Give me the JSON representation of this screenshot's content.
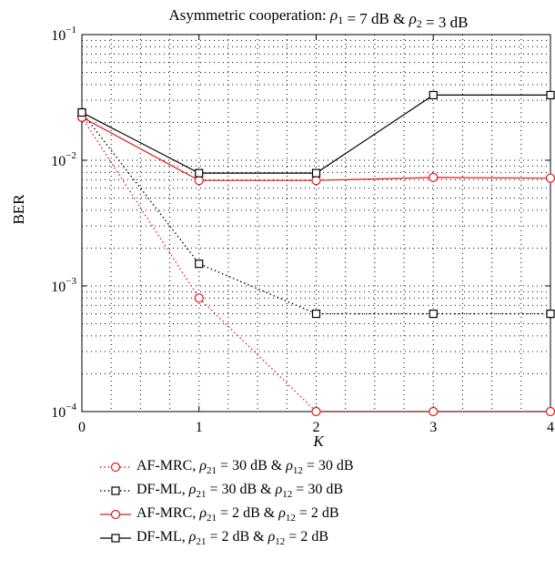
{
  "chart_data": {
    "type": "line",
    "title": "Asymmetric cooperation: ρ1 = 7 dB & ρ2 = 3 dB",
    "xlabel": "K",
    "ylabel": "BER",
    "x": [
      0,
      1,
      2,
      3,
      4
    ],
    "xticks": [
      "0",
      "1",
      "2",
      "3",
      "4"
    ],
    "yscale": "log",
    "ylim": [
      0.0001,
      0.1
    ],
    "yticks": [
      {
        "value": 0.1,
        "base": "10",
        "exp": "−1"
      },
      {
        "value": 0.01,
        "base": "10",
        "exp": "−2"
      },
      {
        "value": 0.001,
        "base": "10",
        "exp": "−3"
      },
      {
        "value": 0.0001,
        "base": "10",
        "exp": "−4"
      }
    ],
    "grid": true,
    "legend_position": "below",
    "series": [
      {
        "name": "AF-MRC, ρ21 = 30 dB & ρ12 = 30 dB",
        "color": "#e0191b",
        "line": "dotted",
        "marker": "circle",
        "values": [
          0.022,
          0.0008,
          0.0001,
          0.0001,
          0.0001
        ]
      },
      {
        "name": "DF-ML, ρ21 = 30 dB & ρ12 = 30 dB",
        "color": "#000000",
        "line": "dotted",
        "marker": "square",
        "values": [
          0.024,
          0.0015,
          0.0006,
          0.0006,
          0.0006
        ]
      },
      {
        "name": "AF-MRC, ρ21 = 2 dB & ρ12 = 2 dB",
        "color": "#e0191b",
        "line": "solid",
        "marker": "circle",
        "values": [
          0.022,
          0.0069,
          0.0069,
          0.0073,
          0.0072
        ]
      },
      {
        "name": "DF-ML, ρ21 = 2 dB & ρ12 = 2 dB",
        "color": "#000000",
        "line": "solid",
        "marker": "square",
        "values": [
          0.024,
          0.0079,
          0.0079,
          0.033,
          0.033
        ]
      }
    ]
  },
  "legend": [
    {
      "method": "AF-MRC, ",
      "rho_a": "ρ",
      "sub_a": "21",
      "mid_a": " = 30 dB & ",
      "rho_b": "ρ",
      "sub_b": "12",
      "mid_b": " = 30 dB"
    },
    {
      "method": "DF-ML, ",
      "rho_a": "ρ",
      "sub_a": "21",
      "mid_a": " = 30 dB & ",
      "rho_b": "ρ",
      "sub_b": "12",
      "mid_b": " = 30 dB"
    },
    {
      "method": "AF-MRC, ",
      "rho_a": "ρ",
      "sub_a": "21",
      "mid_a": " = 2 dB & ",
      "rho_b": "ρ",
      "sub_b": "12",
      "mid_b": " = 2 dB"
    },
    {
      "method": "DF-ML, ",
      "rho_a": "ρ",
      "sub_a": "21",
      "mid_a": " = 2 dB & ",
      "rho_b": "ρ",
      "sub_b": "12",
      "mid_b": " = 2 dB"
    }
  ]
}
